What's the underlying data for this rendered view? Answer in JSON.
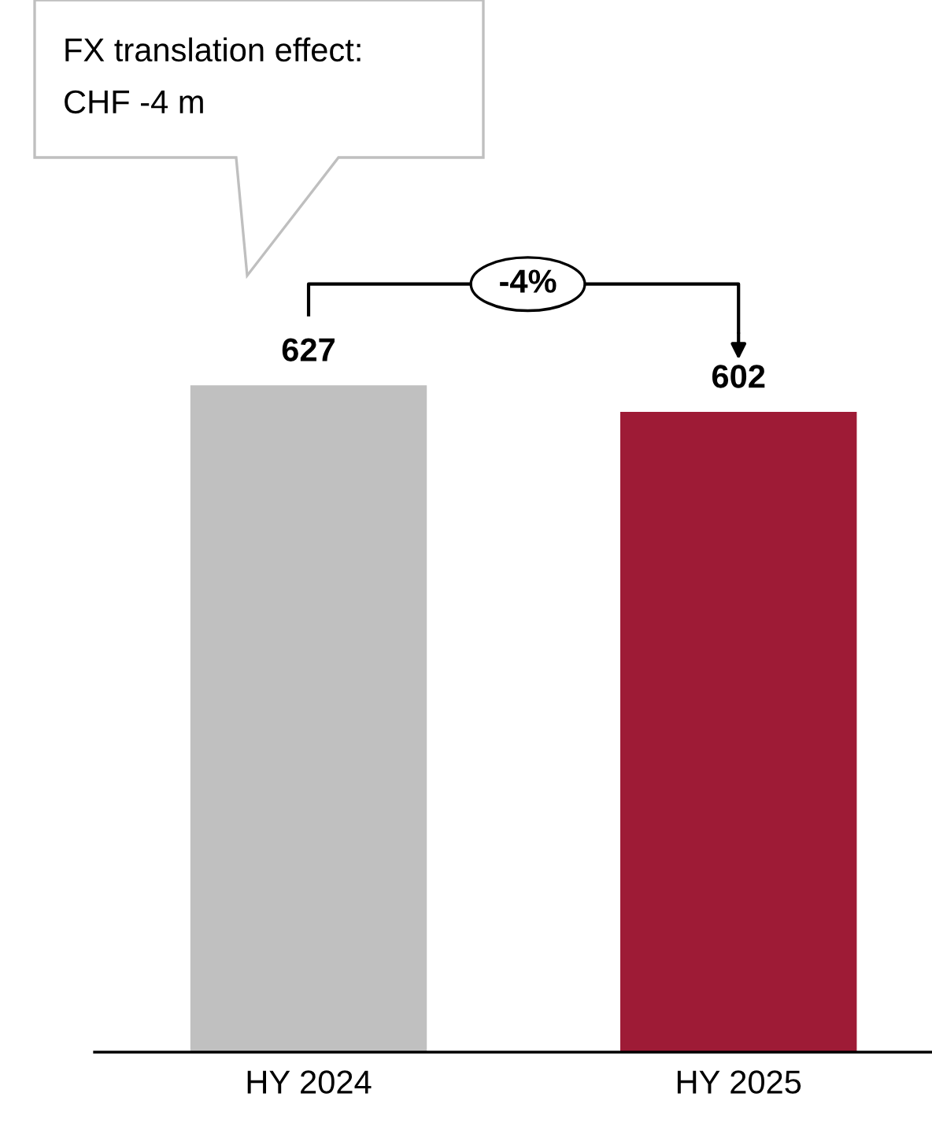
{
  "chart_data": {
    "type": "bar",
    "categories": [
      "HY 2024",
      "HY 2025"
    ],
    "values": [
      627,
      602
    ],
    "colors": [
      "#c0c0c0",
      "#9e1b36"
    ],
    "data_labels": true,
    "grid": false,
    "annotations": [
      "FX translation effect:\nCHF -4 m",
      "-4%"
    ]
  }
}
